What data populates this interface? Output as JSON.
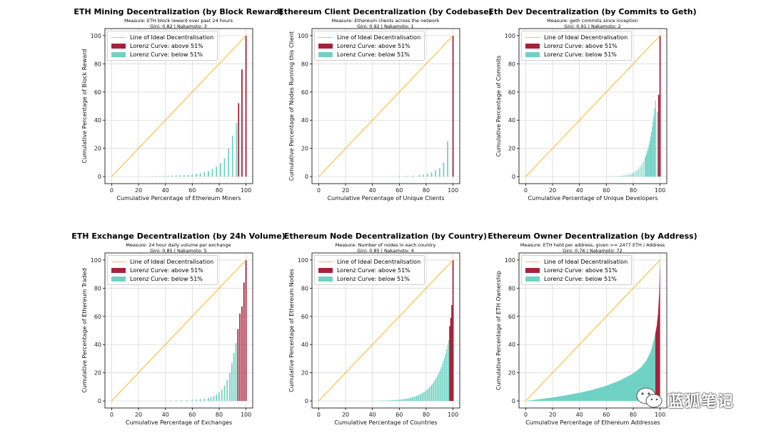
{
  "legend": {
    "ideal": "Line of Ideal Decentralisation",
    "above": "Lorenz Curve: above 51%",
    "below": "Lorenz Curve: below 51%"
  },
  "colors": {
    "ideal": "#f5c142",
    "above": "#a8213a",
    "below": "#6fd2c4"
  },
  "watermark": {
    "text": "蓝狐笔记",
    "icon": "wechat-icon"
  },
  "chart_data": [
    {
      "type": "bar",
      "title": "ETH Mining Decentralization (by Block Reward)",
      "measure": "Measure: ETH block reward over past 24 hours",
      "stats": "Gini: 0.82 | Nakamoto: 3",
      "xlabel": "Cumulative Percentage of Ethereum Miners",
      "ylabel": "Cumulative Percentage of Block Reward",
      "xlim": [
        0,
        100
      ],
      "ylim": [
        0,
        100
      ],
      "xticks": [
        0,
        20,
        40,
        60,
        80,
        100
      ],
      "yticks": [
        0,
        20,
        40,
        60,
        80,
        100
      ],
      "grid": true,
      "legend_position": "top-left",
      "bars": [
        [
          30,
          0.2,
          0
        ],
        [
          33,
          0.3,
          0
        ],
        [
          36,
          0.4,
          0
        ],
        [
          39,
          0.5,
          0
        ],
        [
          42,
          0.6,
          0
        ],
        [
          45,
          0.7,
          0
        ],
        [
          48,
          0.8,
          0
        ],
        [
          51,
          0.9,
          0
        ],
        [
          54,
          1.0,
          0
        ],
        [
          57,
          1.2,
          0
        ],
        [
          60,
          1.5,
          0
        ],
        [
          63,
          2.0,
          0
        ],
        [
          66,
          2.5,
          0
        ],
        [
          69,
          3.2,
          0
        ],
        [
          72,
          4.0,
          0
        ],
        [
          75,
          5.5,
          0
        ],
        [
          78,
          7.0,
          0
        ],
        [
          81,
          9.5,
          0
        ],
        [
          84,
          13,
          0
        ],
        [
          87,
          20,
          0
        ],
        [
          90,
          29,
          0
        ],
        [
          93,
          38,
          0
        ],
        [
          94.5,
          52,
          1
        ],
        [
          97,
          76,
          1
        ],
        [
          100,
          100,
          1
        ]
      ]
    },
    {
      "type": "bar",
      "title": "Ethereum Client Decentralization (by Codebase)",
      "measure": "Measure: Ethereum clients across the network",
      "stats": "Gini: 0.92 | Nakamoto: 1",
      "xlabel": "Cumulative Percentage of Unique Clients",
      "ylabel": "Cumulative Percentage of Nodes Running this Client",
      "xlim": [
        0,
        100
      ],
      "ylim": [
        0,
        100
      ],
      "xticks": [
        0,
        20,
        40,
        60,
        80,
        100
      ],
      "yticks": [
        0,
        20,
        40,
        60,
        80,
        100
      ],
      "grid": true,
      "legend_position": "top-left",
      "bars": [
        [
          50,
          0.2,
          0
        ],
        [
          55,
          0.3,
          0
        ],
        [
          60,
          0.4,
          0
        ],
        [
          65,
          0.5,
          0
        ],
        [
          70,
          0.7,
          0
        ],
        [
          75,
          1.0,
          0
        ],
        [
          78,
          1.3,
          0
        ],
        [
          81,
          2.0,
          0
        ],
        [
          84,
          3.0,
          0
        ],
        [
          87,
          4.5,
          0
        ],
        [
          90,
          6.0,
          0
        ],
        [
          93,
          10,
          0
        ],
        [
          96,
          25,
          0
        ],
        [
          100,
          100,
          1
        ]
      ]
    },
    {
      "type": "bar",
      "title": "Eth Dev Decentralization (by Commits to Geth)",
      "measure": "Measure: geth commits since inception",
      "stats": "Gini: 0.91 | Nakamoto: 2",
      "xlabel": "Cumulative Percentage of Unique Developers",
      "ylabel": "Cumulative Percentage of Commits",
      "xlim": [
        0,
        100
      ],
      "ylim": [
        0,
        100
      ],
      "xticks": [
        0,
        20,
        40,
        60,
        80,
        100
      ],
      "yticks": [
        0,
        20,
        40,
        60,
        80,
        100
      ],
      "grid": true,
      "legend_position": "top-left",
      "curve": {
        "k": 12,
        "end": 58,
        "start": 30,
        "denseStep": 1.2,
        "dense_from": 88,
        "dense_step2": 0.6
      },
      "bars": [
        [
          98.2,
          46,
          0
        ],
        [
          99,
          58,
          1
        ],
        [
          100,
          100,
          1
        ]
      ]
    },
    {
      "type": "bar",
      "title": "ETH Exchange Decentralization (by 24h Volume)",
      "measure": "Measure: 24 hour daily volume per exchange",
      "stats": "Gini: 0.85 | Nakamoto: 5",
      "xlabel": "Cumulative Percentage of Exchanges",
      "ylabel": "Cumulative Percentage of Ethereum Traded",
      "xlim": [
        0,
        100
      ],
      "ylim": [
        0,
        100
      ],
      "xticks": [
        0,
        20,
        40,
        60,
        80,
        100
      ],
      "yticks": [
        0,
        20,
        40,
        60,
        80,
        100
      ],
      "grid": true,
      "legend_position": "top-left",
      "bars": [
        [
          40,
          0.2,
          0
        ],
        [
          44,
          0.3,
          0
        ],
        [
          48,
          0.4,
          0
        ],
        [
          52,
          0.5,
          0
        ],
        [
          56,
          0.6,
          0
        ],
        [
          60,
          0.8,
          0
        ],
        [
          63,
          1.0,
          0
        ],
        [
          66,
          1.3,
          0
        ],
        [
          69,
          1.7,
          0
        ],
        [
          72,
          2.2,
          0
        ],
        [
          74,
          2.8,
          0
        ],
        [
          76,
          3.5,
          0
        ],
        [
          78,
          4.5,
          0
        ],
        [
          80,
          6.0,
          0
        ],
        [
          82,
          8.0,
          0
        ],
        [
          84,
          11,
          0
        ],
        [
          86,
          15,
          0
        ],
        [
          88,
          20,
          0
        ],
        [
          89.5,
          27,
          0
        ],
        [
          91,
          34,
          0
        ],
        [
          92.5,
          41,
          0
        ],
        [
          94,
          51,
          1
        ],
        [
          95.5,
          62,
          1
        ],
        [
          97,
          67,
          1
        ],
        [
          98.5,
          84,
          1
        ],
        [
          100,
          100,
          1
        ]
      ]
    },
    {
      "type": "bar",
      "title": "Ethereum Node Decentralization (by Country)",
      "measure": "Measure: Number of nodes in each country",
      "stats": "Gini: 0.85 | Nakamoto: 4",
      "xlabel": "Cumulative Percentage of Countries",
      "ylabel": "Cumulative Percentage of Ethereum Nodes",
      "xlim": [
        0,
        100
      ],
      "ylim": [
        0,
        100
      ],
      "xticks": [
        0,
        20,
        40,
        60,
        80,
        100
      ],
      "yticks": [
        0,
        20,
        40,
        60,
        80,
        100
      ],
      "grid": true,
      "legend_position": "top-left",
      "curve": {
        "k": 8,
        "end": 44,
        "start": 20,
        "denseStep": 0.8,
        "dense_from": 20,
        "dense_step2": 0.8
      },
      "bars": [
        [
          97.6,
          53,
          1
        ],
        [
          98.4,
          59,
          1
        ],
        [
          99.2,
          68,
          1
        ],
        [
          100,
          100,
          1
        ]
      ]
    },
    {
      "type": "area",
      "title": "Ethereum Owner Decentralization (by Address)",
      "measure": "Measure: ETH held per address, given >= 2477 ETH / Address",
      "stats": "Gini: 0.76 | Nakamoto: 72",
      "xlabel": "Cumulative Percentage of Ethereum Addresses",
      "ylabel": "Cumulative Percentage of ETH Ownership",
      "xlim": [
        0,
        100
      ],
      "ylim": [
        0,
        100
      ],
      "xticks": [
        0,
        20,
        40,
        60,
        80,
        100
      ],
      "yticks": [
        0,
        20,
        40,
        60,
        80,
        100
      ],
      "grid": true,
      "legend_position": "top-left",
      "area_points": [
        [
          0,
          0
        ],
        [
          10,
          1.2
        ],
        [
          20,
          2.5
        ],
        [
          30,
          4.0
        ],
        [
          40,
          5.8
        ],
        [
          50,
          8.0
        ],
        [
          60,
          10.8
        ],
        [
          70,
          14.5
        ],
        [
          80,
          19.5
        ],
        [
          86,
          24
        ],
        [
          90,
          29
        ],
        [
          93,
          35
        ],
        [
          95,
          42
        ],
        [
          96.5,
          48
        ],
        [
          97.5,
          53
        ],
        [
          98.5,
          62
        ],
        [
          99.3,
          75
        ],
        [
          100,
          100
        ]
      ],
      "above_from": 96.5
    }
  ]
}
